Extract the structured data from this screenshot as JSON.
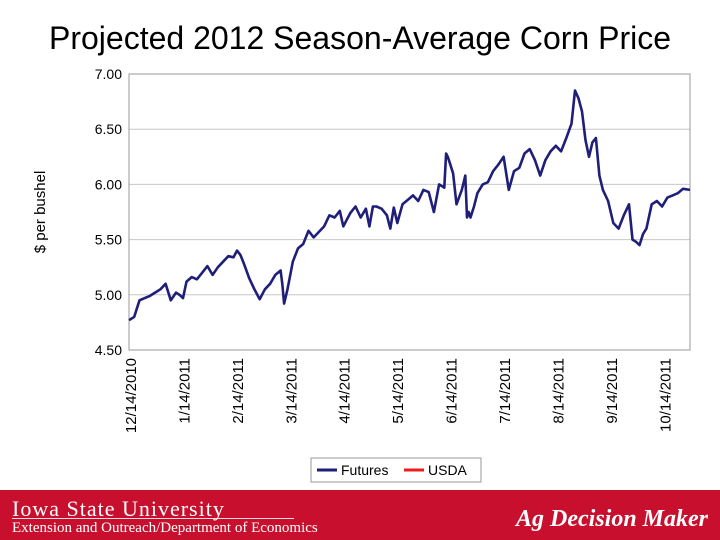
{
  "slide": {
    "title": "Projected 2012 Season-Average Corn Price"
  },
  "footer": {
    "university": "Iowa State University",
    "department": "Extension and Outreach/Department of Economics",
    "brand": "Ag Decision Maker",
    "background_color": "#c8102e"
  },
  "chart_data": {
    "type": "line",
    "title": "Projected 2012 Season-Average Corn Price",
    "xlabel": "",
    "ylabel": "$ per bushel",
    "ylim": [
      4.5,
      7.0
    ],
    "yticks": [
      "7.00",
      "6.50",
      "6.00",
      "5.50",
      "5.00",
      "4.50"
    ],
    "ytick_values": [
      7.0,
      6.5,
      6.0,
      5.5,
      5.0,
      4.5
    ],
    "x_tick_labels": [
      "12/14/2010",
      "1/14/2011",
      "2/14/2011",
      "3/14/2011",
      "4/14/2011",
      "5/14/2011",
      "6/14/2011",
      "7/14/2011",
      "8/14/2011",
      "9/14/2011",
      "10/14/2011"
    ],
    "x_range_days": [
      0,
      322
    ],
    "grid": true,
    "legend_position": "bottom",
    "series": [
      {
        "name": "Futures",
        "color": "#1f1f7a",
        "x_days": [
          0,
          3,
          6,
          9,
          12,
          15,
          18,
          21,
          24,
          27,
          29,
          31,
          33,
          36,
          39,
          42,
          45,
          48,
          51,
          54,
          57,
          60,
          62,
          64,
          66,
          69,
          72,
          75,
          78,
          81,
          84,
          87,
          88,
          89,
          91,
          94,
          97,
          100,
          103,
          106,
          109,
          112,
          115,
          118,
          121,
          123,
          125,
          127,
          130,
          133,
          136,
          138,
          140,
          142,
          145,
          148,
          150,
          152,
          154,
          157,
          160,
          163,
          166,
          169,
          172,
          175,
          178,
          181,
          182,
          183,
          184,
          186,
          188,
          191,
          193,
          194,
          195,
          196,
          198,
          200,
          203,
          206,
          209,
          212,
          215,
          218,
          221,
          224,
          227,
          230,
          233,
          236,
          239,
          242,
          245,
          248,
          251,
          254,
          256,
          258,
          260,
          262,
          264,
          266,
          268,
          270,
          272,
          275,
          278,
          281,
          284,
          287,
          289,
          291,
          293,
          295,
          297,
          300,
          303,
          306,
          309,
          312,
          315,
          318,
          322
        ],
        "values": [
          4.77,
          4.8,
          4.95,
          4.97,
          4.99,
          5.02,
          5.05,
          5.1,
          4.95,
          5.02,
          5.0,
          4.97,
          5.12,
          5.16,
          5.14,
          5.2,
          5.26,
          5.18,
          5.25,
          5.3,
          5.35,
          5.34,
          5.4,
          5.36,
          5.28,
          5.15,
          5.05,
          4.96,
          5.05,
          5.1,
          5.18,
          5.22,
          5.1,
          4.92,
          5.05,
          5.3,
          5.42,
          5.46,
          5.58,
          5.52,
          5.57,
          5.62,
          5.72,
          5.7,
          5.76,
          5.62,
          5.68,
          5.74,
          5.8,
          5.7,
          5.78,
          5.62,
          5.8,
          5.8,
          5.78,
          5.72,
          5.6,
          5.79,
          5.65,
          5.82,
          5.86,
          5.9,
          5.85,
          5.95,
          5.93,
          5.75,
          6.0,
          5.97,
          6.28,
          6.25,
          6.2,
          6.1,
          5.82,
          5.95,
          6.08,
          5.7,
          5.75,
          5.7,
          5.8,
          5.92,
          6.0,
          6.02,
          6.12,
          6.18,
          6.25,
          5.95,
          6.12,
          6.15,
          6.28,
          6.32,
          6.22,
          6.08,
          6.22,
          6.3,
          6.35,
          6.3,
          6.42,
          6.55,
          6.85,
          6.78,
          6.66,
          6.4,
          6.25,
          6.38,
          6.42,
          6.08,
          5.95,
          5.85,
          5.65,
          5.6,
          5.72,
          5.82,
          5.5,
          5.48,
          5.45,
          5.55,
          5.6,
          5.82,
          5.85,
          5.8,
          5.88,
          5.9,
          5.92,
          5.96,
          5.95
        ]
      },
      {
        "name": "USDA",
        "color": "#ee1c1c",
        "x_days": [],
        "values": []
      }
    ]
  }
}
